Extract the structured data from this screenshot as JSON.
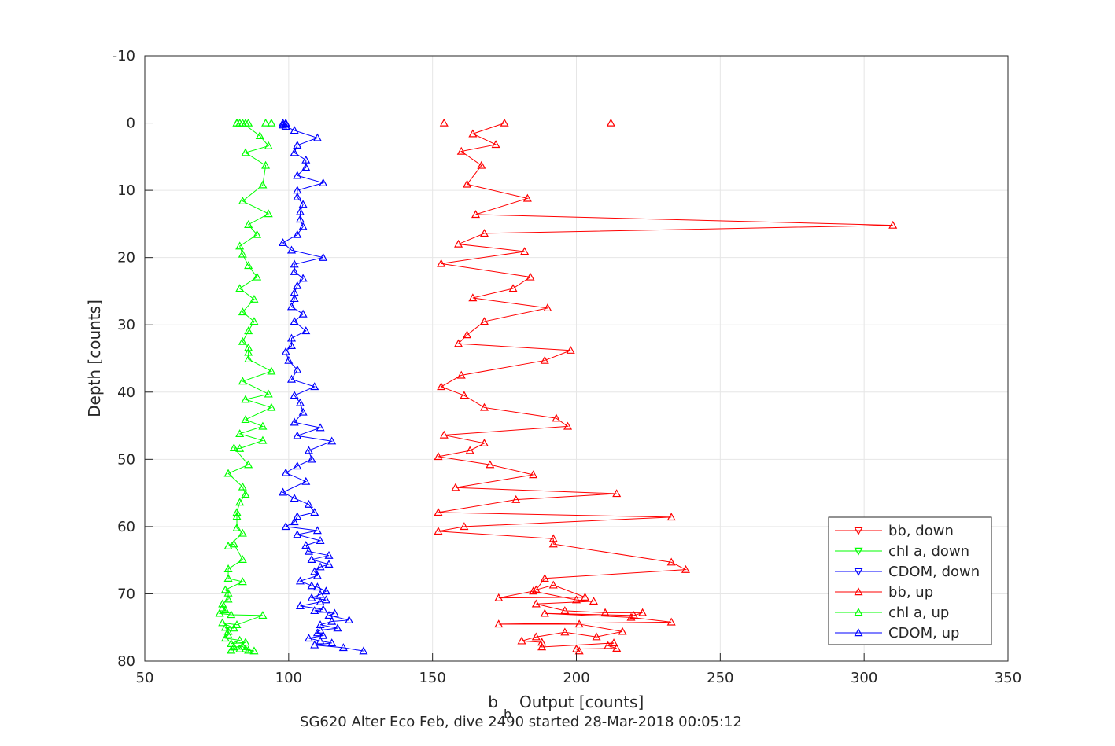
{
  "chart_data": {
    "type": "line",
    "title": "",
    "subtitle": "SG620 Alter Eco Feb, dive 2490 started 28-Mar-2018 00:05:12",
    "xlabel": "b",
    "xlabel_sub": "b",
    "xlabel_rest": "Output [counts]",
    "ylabel": "Depth [counts]",
    "xlim": [
      50,
      350
    ],
    "ylim": [
      -10,
      80
    ],
    "y_reversed": true,
    "grid": true,
    "legend_position": "bottom-right",
    "xticks": [
      "50",
      "100",
      "150",
      "200",
      "250",
      "300",
      "350"
    ],
    "yticks": [
      "-10",
      "0",
      "10",
      "20",
      "30",
      "40",
      "50",
      "60",
      "70",
      "80"
    ],
    "series": [
      {
        "name": "bb, down",
        "color": "#ff0000",
        "marker": "triangle-down",
        "x": [],
        "y": []
      },
      {
        "name": "chl a, down",
        "color": "#00ff00",
        "marker": "triangle-down",
        "x": [],
        "y": []
      },
      {
        "name": "CDOM, down",
        "color": "#0000ff",
        "marker": "triangle-down",
        "x": [],
        "y": []
      },
      {
        "name": "bb, up",
        "color": "#ff0000",
        "marker": "triangle-up",
        "x": [
          201,
          200,
          214,
          211,
          213,
          188,
          188,
          181,
          186,
          196,
          207,
          216,
          201,
          173,
          233,
          219,
          189,
          220,
          223,
          210,
          196,
          186,
          206,
          200,
          185,
          173,
          203,
          192,
          186,
          189,
          238,
          233,
          192,
          192,
          152,
          161,
          233,
          152,
          179,
          214,
          158,
          185,
          170,
          152,
          163,
          168,
          154,
          197,
          193,
          168,
          161,
          153,
          160,
          189,
          198,
          159,
          162,
          168,
          190,
          164,
          178,
          184,
          153,
          182,
          159,
          168,
          310,
          165,
          183,
          162,
          167,
          160,
          172,
          164,
          175,
          154,
          212
        ],
        "y": [
          78.5,
          78.2,
          78.1,
          77.7,
          77.3,
          77.9,
          77.2,
          77.0,
          76.4,
          75.7,
          76.4,
          75.6,
          74.5,
          74.5,
          74.2,
          73.5,
          72.9,
          73.2,
          72.8,
          72.8,
          72.5,
          71.5,
          71.1,
          70.9,
          69.6,
          70.6,
          70.5,
          68.7,
          69.4,
          67.7,
          66.4,
          65.3,
          62.6,
          61.8,
          60.7,
          60.0,
          58.6,
          57.9,
          56.0,
          55.1,
          54.2,
          52.3,
          50.8,
          49.6,
          48.7,
          47.6,
          46.4,
          45.1,
          43.9,
          42.3,
          40.5,
          39.2,
          37.5,
          35.3,
          33.8,
          32.8,
          31.5,
          29.5,
          27.5,
          26.0,
          24.6,
          22.9,
          20.9,
          19.1,
          18.0,
          16.4,
          15.2,
          13.6,
          11.2,
          9.1,
          6.3,
          4.2,
          3.2,
          1.6,
          0.0,
          0.0,
          0.0
        ]
      },
      {
        "name": "chl a, up",
        "color": "#00ff00",
        "marker": "triangle-up",
        "x": [
          83,
          86,
          88,
          85,
          84,
          81,
          80,
          85,
          80,
          83,
          78,
          79,
          79,
          78,
          81,
          77,
          82,
          91,
          80,
          76,
          78,
          77,
          77,
          79,
          79,
          78,
          84,
          79,
          79,
          84,
          81,
          79,
          84,
          82,
          82,
          82,
          83,
          85,
          84,
          79,
          86,
          81,
          83,
          91,
          83,
          91,
          85,
          94,
          85,
          93,
          84,
          94,
          86,
          86,
          86,
          84,
          86,
          88,
          84,
          88,
          83,
          89,
          86,
          84,
          83,
          89,
          86,
          93,
          84,
          91,
          92,
          85,
          93,
          90,
          84,
          94,
          82,
          82,
          85,
          86,
          83,
          92
        ],
        "y": [
          78.2,
          78.4,
          78.5,
          78.2,
          77.8,
          77.9,
          78.4,
          77.2,
          77.4,
          76.9,
          76.6,
          76.1,
          75.6,
          75.0,
          75.1,
          74.3,
          74.6,
          73.2,
          73.1,
          72.9,
          72.4,
          72.1,
          71.5,
          70.8,
          69.9,
          69.4,
          68.2,
          67.7,
          66.3,
          64.9,
          62.6,
          62.9,
          61.0,
          60.2,
          58.5,
          57.9,
          56.4,
          55.2,
          54.1,
          52.1,
          50.8,
          48.3,
          48.4,
          47.2,
          46.2,
          45.1,
          44.1,
          42.3,
          41.1,
          40.3,
          38.4,
          36.9,
          35.1,
          34.1,
          33.4,
          32.5,
          30.9,
          29.5,
          28.1,
          26.2,
          24.6,
          22.9,
          21.2,
          19.5,
          18.3,
          16.6,
          15.1,
          13.5,
          11.6,
          9.2,
          6.3,
          4.4,
          3.4,
          1.9,
          0.0,
          0.0,
          0.0,
          0.0,
          0.0,
          0.0,
          0.0,
          0.0
        ]
      },
      {
        "name": "CDOM, up",
        "color": "#0000ff",
        "marker": "triangle-up",
        "x": [
          126,
          119,
          109,
          115,
          111,
          107,
          112,
          110,
          111,
          117,
          111,
          115,
          121,
          114,
          116,
          109,
          112,
          104,
          111,
          113,
          108,
          111,
          113,
          110,
          108,
          104,
          110,
          109,
          111,
          114,
          108,
          114,
          107,
          106,
          111,
          103,
          110,
          99,
          102,
          103,
          109,
          107,
          102,
          98,
          106,
          99,
          103,
          108,
          107,
          115,
          103,
          111,
          102,
          105,
          104,
          102,
          109,
          101,
          103,
          100,
          99,
          101,
          101,
          106,
          102,
          105,
          101,
          102,
          102,
          103,
          105,
          102,
          102,
          112,
          101,
          98,
          103,
          105,
          104,
          104,
          105,
          103,
          103,
          112,
          103,
          106,
          106,
          102,
          103,
          110,
          102,
          99,
          98,
          99,
          99,
          98
        ],
        "y": [
          78.5,
          78.0,
          77.6,
          77.3,
          77.0,
          76.6,
          76.2,
          75.8,
          75.4,
          75.1,
          74.6,
          74.1,
          73.9,
          73.2,
          72.9,
          72.5,
          72.3,
          71.8,
          71.2,
          70.9,
          70.6,
          70.1,
          69.6,
          69.0,
          68.8,
          68.1,
          67.3,
          66.7,
          66.0,
          65.6,
          64.9,
          64.3,
          63.7,
          62.8,
          62.1,
          61.2,
          60.6,
          60.0,
          59.3,
          58.5,
          57.9,
          56.7,
          55.8,
          54.9,
          53.3,
          52.0,
          51.0,
          50.0,
          48.7,
          47.3,
          46.5,
          45.3,
          44.5,
          43.0,
          41.6,
          40.5,
          39.2,
          38.1,
          36.7,
          35.3,
          34.0,
          33.1,
          32.0,
          30.9,
          29.5,
          28.4,
          27.3,
          26.1,
          25.2,
          24.2,
          23.1,
          22.1,
          21.0,
          20.0,
          18.9,
          17.8,
          16.6,
          15.4,
          14.3,
          13.2,
          12.1,
          11.0,
          10.0,
          8.9,
          7.8,
          6.6,
          5.5,
          4.4,
          3.3,
          2.2,
          1.1,
          0.5,
          0.3,
          0.1,
          0.0,
          0.0
        ]
      }
    ]
  }
}
